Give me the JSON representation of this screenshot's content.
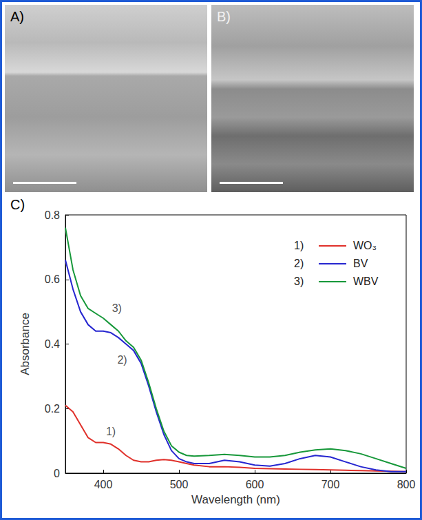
{
  "panels": [
    {
      "label": "A)"
    },
    {
      "label": "B)"
    }
  ],
  "chart_data": {
    "type": "line",
    "panel_label": "C)",
    "x_label": "Wavelength (nm)",
    "y_label": "Absorbance",
    "x": [
      350,
      360,
      370,
      380,
      390,
      400,
      410,
      420,
      430,
      440,
      450,
      460,
      470,
      480,
      490,
      500,
      510,
      520,
      540,
      560,
      580,
      600,
      620,
      640,
      660,
      680,
      700,
      720,
      740,
      760,
      780,
      800
    ],
    "series": [
      {
        "name": "WO₃",
        "number": "1)",
        "color": "#e0302a",
        "values": [
          0.21,
          0.19,
          0.15,
          0.11,
          0.095,
          0.095,
          0.09,
          0.075,
          0.055,
          0.04,
          0.035,
          0.035,
          0.04,
          0.042,
          0.04,
          0.035,
          0.03,
          0.025,
          0.02,
          0.02,
          0.018,
          0.015,
          0.014,
          0.013,
          0.012,
          0.011,
          0.01,
          0.009,
          0.008,
          0.007,
          0.006,
          0.005
        ]
      },
      {
        "name": "BV",
        "number": "2)",
        "color": "#2626d0",
        "values": [
          0.66,
          0.57,
          0.5,
          0.46,
          0.44,
          0.44,
          0.435,
          0.42,
          0.4,
          0.38,
          0.34,
          0.27,
          0.19,
          0.12,
          0.07,
          0.045,
          0.035,
          0.03,
          0.03,
          0.04,
          0.035,
          0.025,
          0.022,
          0.03,
          0.045,
          0.055,
          0.05,
          0.035,
          0.02,
          0.01,
          0.005,
          0.005
        ]
      },
      {
        "name": "WBV",
        "number": "3)",
        "color": "#17983a",
        "values": [
          0.76,
          0.63,
          0.55,
          0.51,
          0.495,
          0.48,
          0.46,
          0.44,
          0.41,
          0.39,
          0.35,
          0.28,
          0.2,
          0.13,
          0.085,
          0.065,
          0.055,
          0.053,
          0.055,
          0.058,
          0.055,
          0.05,
          0.05,
          0.055,
          0.065,
          0.072,
          0.075,
          0.07,
          0.06,
          0.045,
          0.03,
          0.015
        ]
      }
    ],
    "annotations": [
      {
        "text": "1)",
        "x": 410,
        "y": 0.13
      },
      {
        "text": "2)",
        "x": 425,
        "y": 0.35
      },
      {
        "text": "3)",
        "x": 418,
        "y": 0.51
      }
    ],
    "xlim": [
      350,
      800
    ],
    "xticks": [
      400,
      500,
      600,
      700,
      800
    ],
    "ylim": [
      0,
      0.8
    ],
    "yticks": [
      0,
      0.2,
      0.4,
      0.6,
      0.8
    ],
    "grid": false,
    "legend": "upper right"
  }
}
